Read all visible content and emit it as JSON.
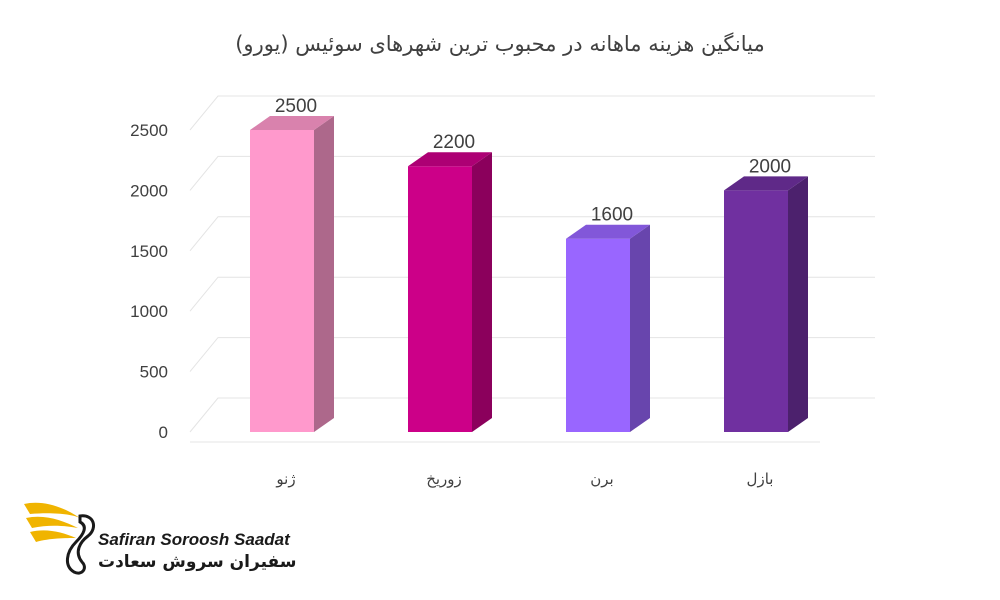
{
  "chart_data": {
    "type": "bar",
    "title": "میانگین هزینه ماهانه در محبوب ترین شهرهای سوئیس (یورو)",
    "categories": [
      "ژنو",
      "زوریخ",
      "برن",
      "بازل"
    ],
    "values": [
      2500,
      2200,
      1600,
      2000
    ],
    "data_labels": [
      "2500",
      "2200",
      "1600",
      "2000"
    ],
    "colors": [
      "#ff99cc",
      "#cc0088",
      "#9966ff",
      "#7030a0"
    ],
    "ylim": [
      0,
      2500
    ],
    "yticks": [
      "0",
      "500",
      "1000",
      "1500",
      "2000",
      "2500"
    ],
    "xlabel": "",
    "ylabel": "",
    "grid": true,
    "legend": "none"
  },
  "logo": {
    "name_en": "Safiran Soroosh Saadat",
    "name_fa": "سفیران سروش سعادت"
  }
}
